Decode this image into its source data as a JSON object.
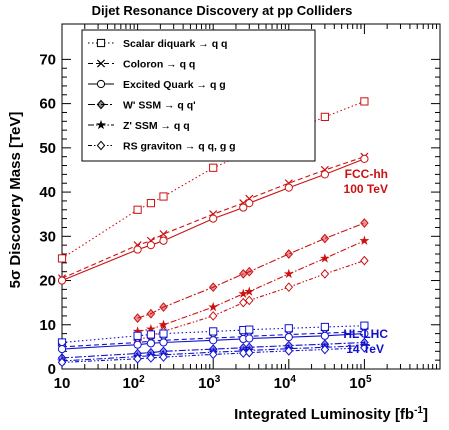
{
  "chart_data": {
    "type": "line",
    "title": "Dijet Resonance Discovery at pp Colliders",
    "xlabel": "Integrated Luminosity [fb",
    "xlabel_sup": "-1",
    "xlabel_tail": "]",
    "ylabel": "5σ Discovery Mass [TeV]",
    "xscale": "log",
    "xlim": [
      10,
      1000000
    ],
    "ylim": [
      0,
      78
    ],
    "yticks": [
      0,
      10,
      20,
      30,
      40,
      50,
      60,
      70
    ],
    "xticks": [
      10,
      100,
      1000,
      10000,
      100000
    ],
    "xtick_labels": [
      "10",
      "10",
      "10",
      "10",
      "10"
    ],
    "xtick_exponents": [
      "",
      "2",
      "3",
      "4",
      "5"
    ],
    "grid": false,
    "legend_position": "top-left",
    "colors": {
      "fcc": "#cc1111",
      "hl": "#1111cc",
      "axis": "#000000"
    },
    "annotations": [
      {
        "label": "FCC-hh",
        "color": "#cc1111"
      },
      {
        "label": "100 TeV",
        "color": "#cc1111"
      },
      {
        "label": "HL-LHC",
        "color": "#1111cc"
      },
      {
        "label": "14 TeV",
        "color": "#1111cc"
      }
    ],
    "series": [
      {
        "name": "Scalar diquark → q q",
        "group": "fcc",
        "marker": "square",
        "dash": "1.5,2.5",
        "x": [
          10,
          100,
          150,
          220,
          1000,
          2500,
          3000,
          10000,
          30000,
          100000
        ],
        "y": [
          25,
          36,
          37.5,
          39,
          45.5,
          48.5,
          49.5,
          53.5,
          57,
          60.5
        ]
      },
      {
        "name": "Coloron → q q",
        "group": "fcc",
        "marker": "x",
        "dash": "5,3",
        "x": [
          10,
          100,
          150,
          220,
          1000,
          2500,
          3000,
          10000,
          30000,
          100000
        ],
        "y": [
          20.5,
          28,
          29,
          30.5,
          35,
          37.5,
          38.5,
          42,
          45,
          48
        ]
      },
      {
        "name": "Excited Quark → q g",
        "group": "fcc",
        "marker": "circle",
        "dash": "",
        "x": [
          10,
          100,
          150,
          220,
          1000,
          2500,
          3000,
          10000,
          30000,
          100000
        ],
        "y": [
          20,
          27,
          28,
          29,
          34,
          36.5,
          37.5,
          41,
          44,
          47.5
        ]
      },
      {
        "name": "W' SSM → q q'",
        "group": "fcc",
        "marker": "diamond-filled",
        "dash": "7,2,2,2",
        "x": [
          100,
          150,
          220,
          1000,
          2500,
          3000,
          10000,
          30000,
          100000
        ],
        "y": [
          11.5,
          12.5,
          14,
          18.5,
          21.5,
          22,
          26,
          29.5,
          33
        ]
      },
      {
        "name": "Z' SSM → q q",
        "group": "fcc",
        "marker": "star",
        "dash": "6,2,1.5,2",
        "x": [
          100,
          150,
          220,
          1000,
          2500,
          3000,
          10000,
          30000,
          100000
        ],
        "y": [
          8.5,
          9,
          10,
          14,
          17,
          17.5,
          21.5,
          25,
          29
        ]
      },
      {
        "name": "RS graviton → q q, g g",
        "group": "fcc",
        "marker": "diamond",
        "dash": "4,2,1.5,2,1.5,2",
        "x": [
          100,
          150,
          220,
          1000,
          2500,
          3000,
          10000,
          30000,
          100000
        ],
        "y": [
          6.5,
          7.5,
          8.5,
          12,
          15,
          15.5,
          18.5,
          21.5,
          24.5
        ]
      },
      {
        "name": "Scalar diquark → q q (HL-LHC)",
        "group": "hl",
        "marker": "square",
        "dash": "1.5,2.5",
        "x": [
          10,
          100,
          150,
          220,
          1000,
          2500,
          3000,
          10000,
          30000,
          100000
        ],
        "y": [
          6,
          7.5,
          7.8,
          8,
          8.5,
          8.8,
          8.9,
          9.2,
          9.5,
          9.8
        ]
      },
      {
        "name": "Coloron → q q (HL-LHC)",
        "group": "hl",
        "marker": "x",
        "dash": "5,3",
        "x": [
          10,
          100,
          150,
          220,
          1000,
          2500,
          3000,
          10000,
          30000,
          100000
        ],
        "y": [
          5,
          6,
          6.3,
          6.5,
          7,
          7.3,
          7.4,
          7.8,
          8.1,
          8.5
        ]
      },
      {
        "name": "Excited Quark → q g (HL-LHC)",
        "group": "hl",
        "marker": "circle",
        "dash": "",
        "x": [
          10,
          100,
          150,
          220,
          1000,
          2500,
          3000,
          10000,
          30000,
          100000
        ],
        "y": [
          4.5,
          5.5,
          5.8,
          6,
          6.5,
          6.8,
          6.9,
          7.2,
          7.5,
          8
        ]
      },
      {
        "name": "W' SSM → q q' (HL-LHC)",
        "group": "hl",
        "marker": "diamond-filled",
        "dash": "7,2,2,2",
        "x": [
          10,
          100,
          150,
          220,
          1000,
          2500,
          3000,
          10000,
          30000,
          100000
        ],
        "y": [
          2.5,
          3.5,
          3.7,
          4,
          4.5,
          4.8,
          4.9,
          5.3,
          5.6,
          6
        ]
      },
      {
        "name": "Z' SSM → q q (HL-LHC)",
        "group": "hl",
        "marker": "star",
        "dash": "6,2,1.5,2",
        "x": [
          10,
          100,
          150,
          220,
          1000,
          2500,
          3000,
          10000,
          30000,
          100000
        ],
        "y": [
          1.8,
          2.8,
          3,
          3.2,
          3.8,
          4.1,
          4.2,
          4.6,
          4.9,
          5.3
        ]
      },
      {
        "name": "RS graviton → q q, g g (HL-LHC)",
        "group": "hl",
        "marker": "diamond",
        "dash": "4,2,1.5,2,1.5,2",
        "x": [
          10,
          100,
          150,
          220,
          1000,
          2500,
          3000,
          10000,
          30000,
          100000
        ],
        "y": [
          1.5,
          2.3,
          2.5,
          2.7,
          3.3,
          3.6,
          3.7,
          4.1,
          4.4,
          4.8
        ]
      }
    ],
    "legend": [
      {
        "label": "Scalar diquark  → q q",
        "marker": "square",
        "dash": "1.5,2.5"
      },
      {
        "label": "Coloron  → q q",
        "marker": "x",
        "dash": "5,3"
      },
      {
        "label": "Excited Quark  → q g",
        "marker": "circle",
        "dash": ""
      },
      {
        "label": "W' SSM  → q q'",
        "marker": "diamond-filled",
        "dash": "7,2,2,2"
      },
      {
        "label": "Z' SSM  → q q",
        "marker": "star",
        "dash": "6,2,1.5,2"
      },
      {
        "label": "RS graviton  → q q, g g",
        "marker": "diamond",
        "dash": "4,2,1.5,2,1.5,2"
      }
    ]
  }
}
